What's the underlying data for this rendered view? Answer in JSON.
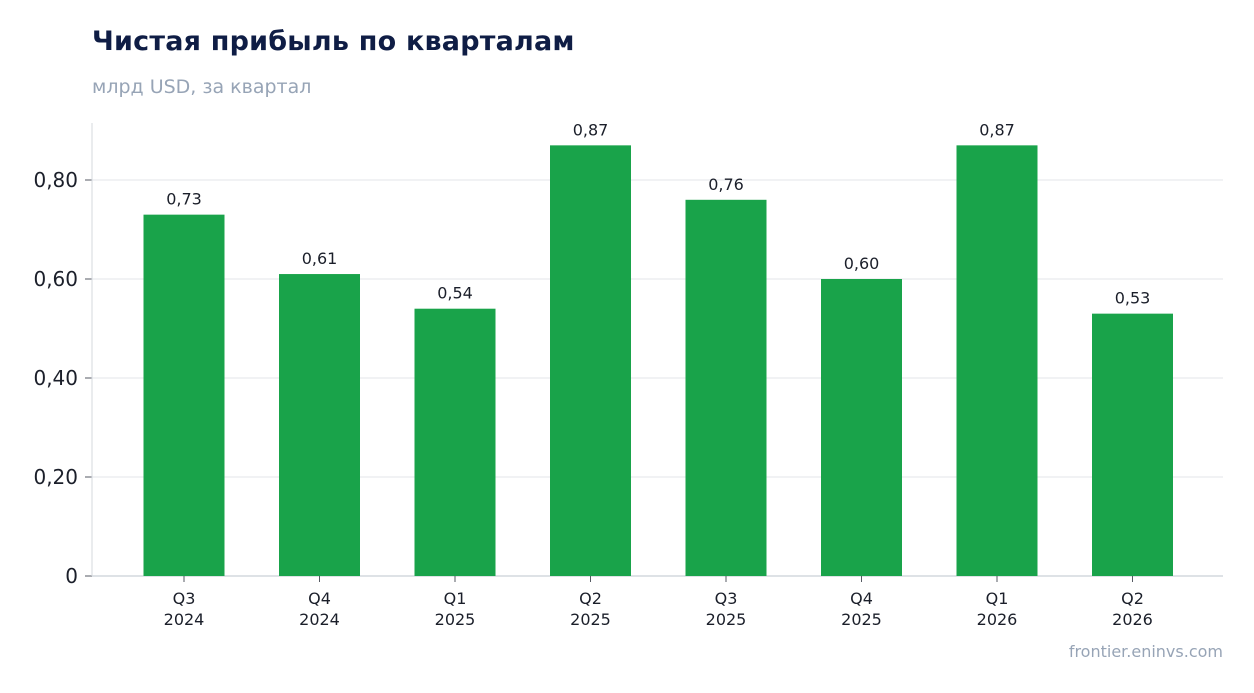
{
  "header": {
    "title": "Чистая прибыль по кварталам",
    "subtitle": "млрд USD, за квартал"
  },
  "footer": {
    "source": "frontier.eninvs.com"
  },
  "colors": {
    "bar": "#19a34a",
    "title": "#0f1d45",
    "muted": "#97a4b6",
    "grid": "#e3e6ea",
    "axis": "#d4d8de"
  },
  "chart_data": {
    "type": "bar",
    "title": "Чистая прибыль по кварталам",
    "subtitle": "млрд USD, за квартал",
    "categories": [
      [
        "Q3",
        "2024"
      ],
      [
        "Q4",
        "2024"
      ],
      [
        "Q1",
        "2025"
      ],
      [
        "Q2",
        "2025"
      ],
      [
        "Q3",
        "2025"
      ],
      [
        "Q4",
        "2025"
      ],
      [
        "Q1",
        "2026"
      ],
      [
        "Q2",
        "2026"
      ]
    ],
    "values": [
      0.73,
      0.61,
      0.54,
      0.87,
      0.76,
      0.6,
      0.87,
      0.53
    ],
    "data_labels": [
      "0,73",
      "0,61",
      "0,54",
      "0,87",
      "0,76",
      "0,60",
      "0,87",
      "0,53"
    ],
    "yticks": [
      0,
      0.2,
      0.4,
      0.6,
      0.8
    ],
    "ytick_labels": [
      "0",
      "0,20",
      "0,40",
      "0,60",
      "0,80"
    ],
    "ylim": [
      0,
      0.92
    ],
    "grid": true,
    "legend": "none"
  }
}
